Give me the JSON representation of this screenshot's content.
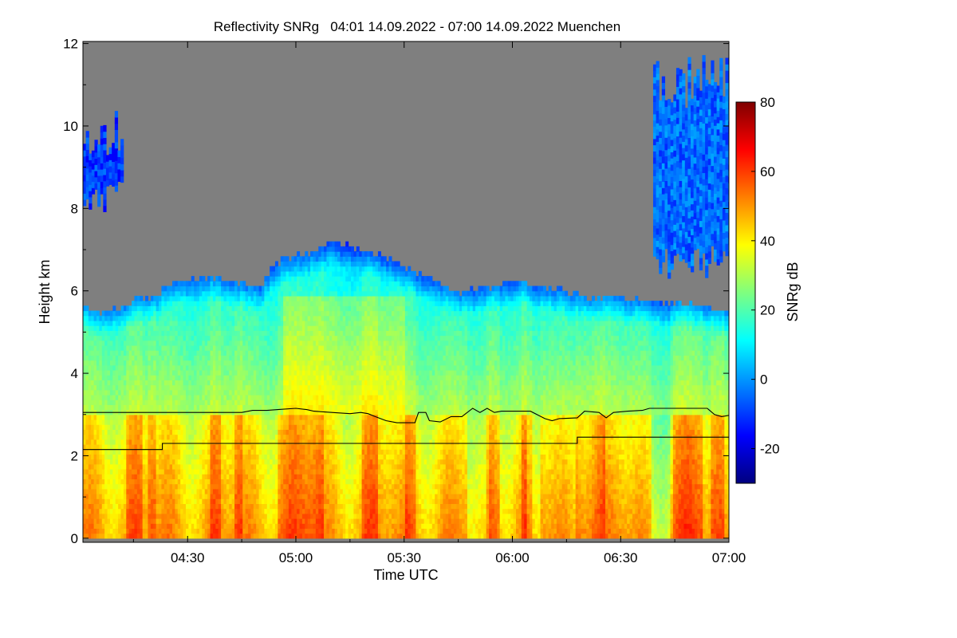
{
  "chart_data": {
    "type": "heatmap",
    "title": "Reflectivity SNRg   04:01 14.09.2022 - 07:00 14.09.2022 Muenchen",
    "xlabel": "Time UTC",
    "ylabel": "Height km",
    "colorbar_label": "SNRg dB",
    "x_range_minutes_utc": [
      241,
      420
    ],
    "x_ticks": [
      {
        "minute": 270,
        "label": "04:30"
      },
      {
        "minute": 300,
        "label": "05:00"
      },
      {
        "minute": 330,
        "label": "05:30"
      },
      {
        "minute": 360,
        "label": "06:00"
      },
      {
        "minute": 390,
        "label": "06:30"
      },
      {
        "minute": 420,
        "label": "07:00"
      }
    ],
    "y_range_km": [
      -0.1,
      12.05
    ],
    "y_ticks": [
      0,
      2,
      4,
      6,
      8,
      10,
      12
    ],
    "colorbar_range_db": [
      -30,
      80
    ],
    "colorbar_ticks": [
      -20,
      0,
      20,
      40,
      60,
      80
    ],
    "no_signal_color": "#7f7f7f",
    "colormap": [
      "#00007f",
      "#0000ff",
      "#007fff",
      "#00ffff",
      "#7fff7f",
      "#ffff00",
      "#ff7f00",
      "#ff0000",
      "#7f0000"
    ],
    "cloud_top_km": [
      [
        241,
        5.6
      ],
      [
        245,
        5.4
      ],
      [
        250,
        5.5
      ],
      [
        255,
        5.7
      ],
      [
        260,
        5.8
      ],
      [
        265,
        6.1
      ],
      [
        270,
        6.2
      ],
      [
        275,
        6.3
      ],
      [
        280,
        6.2
      ],
      [
        285,
        6.1
      ],
      [
        290,
        6.1
      ],
      [
        293,
        6.5
      ],
      [
        296,
        6.7
      ],
      [
        300,
        6.8
      ],
      [
        305,
        6.9
      ],
      [
        310,
        7.2
      ],
      [
        315,
        7.0
      ],
      [
        320,
        6.9
      ],
      [
        325,
        6.7
      ],
      [
        330,
        6.5
      ],
      [
        335,
        6.3
      ],
      [
        340,
        6.1
      ],
      [
        345,
        5.9
      ],
      [
        350,
        6.0
      ],
      [
        355,
        6.1
      ],
      [
        360,
        6.2
      ],
      [
        365,
        6.1
      ],
      [
        370,
        6.0
      ],
      [
        375,
        5.9
      ],
      [
        380,
        5.8
      ],
      [
        385,
        5.8
      ],
      [
        390,
        5.8
      ],
      [
        395,
        5.7
      ],
      [
        400,
        5.7
      ],
      [
        405,
        5.6
      ],
      [
        410,
        5.6
      ],
      [
        415,
        5.5
      ],
      [
        420,
        5.4
      ]
    ],
    "cirrus_patches": [
      {
        "minute_start": 241,
        "minute_end": 252,
        "bottom_km": 7.9,
        "top_km": 10.4,
        "mean_db": -10
      },
      {
        "minute_start": 399,
        "minute_end": 420,
        "bottom_km": 6.3,
        "top_km": 11.6,
        "mean_db": -5
      }
    ],
    "series": [
      {
        "name": "boundary layer height (upper line)",
        "points": [
          [
            241,
            3.05
          ],
          [
            285,
            3.05
          ],
          [
            288,
            3.1
          ],
          [
            292,
            3.1
          ],
          [
            295,
            3.12
          ],
          [
            300,
            3.15
          ],
          [
            303,
            3.12
          ],
          [
            305,
            3.08
          ],
          [
            310,
            3.05
          ],
          [
            315,
            3.02
          ],
          [
            318,
            3.05
          ],
          [
            320,
            3.02
          ],
          [
            322,
            2.95
          ],
          [
            325,
            2.85
          ],
          [
            328,
            2.8
          ],
          [
            333,
            2.8
          ],
          [
            334,
            3.05
          ],
          [
            336,
            3.05
          ],
          [
            337,
            2.85
          ],
          [
            340,
            2.82
          ],
          [
            343,
            2.95
          ],
          [
            346,
            2.95
          ],
          [
            349,
            3.15
          ],
          [
            351,
            3.05
          ],
          [
            353,
            3.15
          ],
          [
            355,
            3.05
          ],
          [
            357,
            3.08
          ],
          [
            360,
            3.08
          ],
          [
            365,
            3.08
          ],
          [
            369,
            2.9
          ],
          [
            371,
            2.85
          ],
          [
            373,
            2.9
          ],
          [
            378,
            2.92
          ],
          [
            380,
            3.08
          ],
          [
            384,
            3.05
          ],
          [
            386,
            2.92
          ],
          [
            388,
            3.05
          ],
          [
            392,
            3.08
          ],
          [
            396,
            3.1
          ],
          [
            398,
            3.15
          ],
          [
            407,
            3.15
          ],
          [
            414,
            3.15
          ],
          [
            416,
            3.0
          ],
          [
            418,
            2.95
          ],
          [
            420,
            2.98
          ]
        ]
      },
      {
        "name": "lower layer height (lower line)",
        "points": [
          [
            241,
            2.15
          ],
          [
            263,
            2.15
          ],
          [
            263,
            2.3
          ],
          [
            303,
            2.3
          ],
          [
            348,
            2.3
          ],
          [
            378,
            2.3
          ],
          [
            378,
            2.45
          ],
          [
            420,
            2.45
          ]
        ]
      }
    ]
  }
}
